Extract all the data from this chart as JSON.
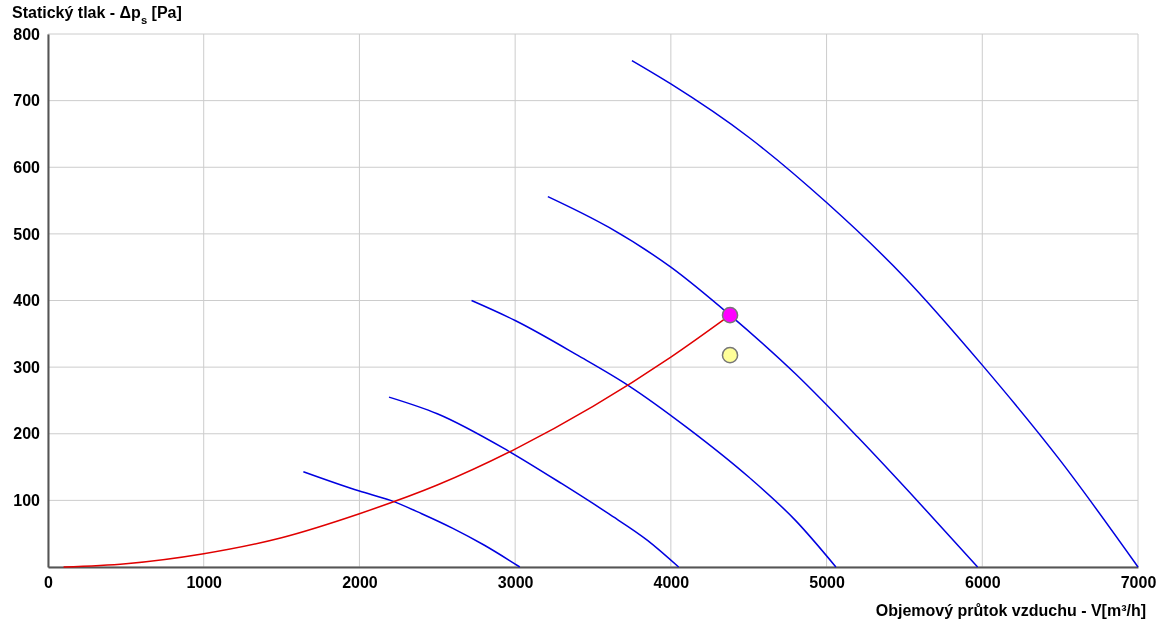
{
  "chart_data": {
    "type": "line",
    "ylabel": "Statický tlak - Δp$_{s}$ [Pa]",
    "xlabel": "Objemový průtok vzduchu -  V[m³/h]",
    "xlim": [
      0,
      7000
    ],
    "xticks": [
      0,
      1000,
      2000,
      3000,
      4000,
      5000,
      6000,
      7000
    ],
    "ylim": [
      0,
      800
    ],
    "yticks": [
      {
        "value": 0,
        "label": null
      },
      100,
      200,
      300,
      400,
      500,
      600,
      700,
      800
    ],
    "grid": true,
    "line_style": "solid",
    "series": [
      {
        "color": "#0000e0",
        "x": [
          1640,
          2000,
          2200,
          2400,
          2600,
          2800,
          3030
        ],
        "values": [
          143,
          114,
          100,
          80,
          58,
          33,
          0
        ]
      },
      {
        "color": "#0000e0",
        "x": [
          2190,
          2500,
          2950,
          3300,
          3600,
          3850,
          4050
        ],
        "values": [
          255,
          230,
          175,
          125,
          80,
          40,
          0
        ]
      },
      {
        "color": "#0000e0",
        "x": [
          2720,
          3000,
          3400,
          3730,
          4100,
          4500,
          4800,
          5060
        ],
        "values": [
          400,
          370,
          318,
          272,
          210,
          135,
          70,
          0
        ]
      },
      {
        "color": "#0000e0",
        "x": [
          3210,
          3600,
          4000,
          4380,
          4800,
          5200,
          5600,
          5970
        ],
        "values": [
          556,
          510,
          450,
          378,
          290,
          195,
          95,
          0
        ]
      },
      {
        "color": "#0000e0",
        "x": [
          3750,
          4000,
          4500,
          5000,
          5500,
          6000,
          6500,
          7000
        ],
        "values": [
          760,
          725,
          645,
          547,
          435,
          303,
          160,
          0
        ]
      },
      {
        "color": "#e00000",
        "x": [
          100,
          500,
          1000,
          1500,
          2000,
          2500,
          3000,
          3500,
          4000,
          4380
        ],
        "values": [
          0,
          5,
          20,
          44,
          80,
          123,
          177,
          241,
          315,
          378
        ]
      },
      {
        "type": "scatter",
        "marker": "circle",
        "color": "#ff00ff",
        "x": [
          4380
        ],
        "values": [
          378
        ]
      },
      {
        "type": "scatter",
        "marker": "circle",
        "color": "#ffff99",
        "x": [
          4380
        ],
        "values": [
          318
        ]
      }
    ]
  }
}
